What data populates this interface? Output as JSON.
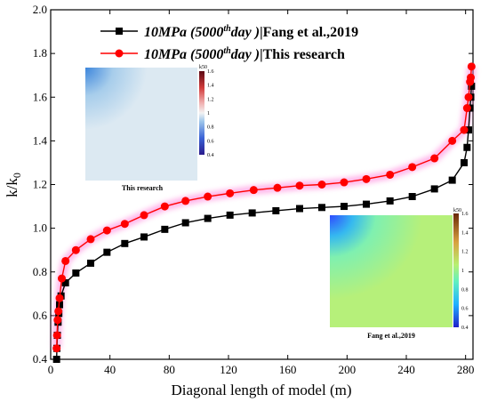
{
  "chart_data": {
    "type": "line",
    "xlabel": "Diagonal length of model (m)",
    "ylabel": "k/k0",
    "xlim": [
      0,
      285
    ],
    "ylim": [
      0.4,
      2.0
    ],
    "xticks": [
      "0",
      "40",
      "80",
      "120",
      "160",
      "200",
      "240",
      "280"
    ],
    "yticks": [
      "0.4",
      "0.6",
      "0.8",
      "1.0",
      "1.2",
      "1.4",
      "1.6",
      "1.8",
      "2.0"
    ],
    "legend_position": "top",
    "series": [
      {
        "name": "10MPa (5000thday)|Fang et al.,2019",
        "legend_main": "10MPa (5000",
        "legend_sup": "th",
        "legend_after": "day )",
        "legend_ref": "|Fang et al.,2019",
        "color": "#000000",
        "marker": "square",
        "x": [
          4,
          4.2,
          4.5,
          5,
          5.5,
          6,
          7,
          10,
          17,
          27,
          38,
          50,
          63,
          77,
          91,
          106,
          121,
          136,
          152,
          168,
          183,
          198,
          213,
          229,
          244,
          259,
          271,
          279,
          281,
          282,
          283,
          283.5,
          284
        ],
        "y": [
          0.4,
          0.45,
          0.51,
          0.57,
          0.61,
          0.65,
          0.69,
          0.75,
          0.795,
          0.84,
          0.89,
          0.93,
          0.96,
          0.995,
          1.025,
          1.045,
          1.06,
          1.07,
          1.08,
          1.09,
          1.095,
          1.1,
          1.11,
          1.125,
          1.145,
          1.18,
          1.22,
          1.3,
          1.37,
          1.45,
          1.55,
          1.6,
          1.65
        ]
      },
      {
        "name": "10MPa (5000thday)|This research",
        "legend_main": "10MPa (5000",
        "legend_sup": "th",
        "legend_after": "day )",
        "legend_ref": "|This research",
        "color": "#ff0000",
        "marker": "circle",
        "x": [
          4,
          4.3,
          4.7,
          5.2,
          6,
          7.5,
          10,
          17,
          27,
          38,
          50,
          63,
          77,
          91,
          106,
          121,
          137,
          153,
          168,
          183,
          198,
          213,
          229,
          244,
          259,
          271,
          279,
          281,
          282,
          283,
          283.5,
          284
        ],
        "y": [
          0.45,
          0.51,
          0.58,
          0.62,
          0.68,
          0.77,
          0.85,
          0.9,
          0.95,
          0.99,
          1.02,
          1.06,
          1.1,
          1.125,
          1.145,
          1.16,
          1.175,
          1.185,
          1.195,
          1.2,
          1.21,
          1.225,
          1.245,
          1.28,
          1.32,
          1.4,
          1.45,
          1.55,
          1.6,
          1.67,
          1.69,
          1.74
        ]
      }
    ],
    "insets": [
      {
        "caption": "This research",
        "colorbar_title": "k50",
        "colorbar_ticks": [
          "1.6",
          "1.4",
          "1.2",
          "1",
          "0.8",
          "0.6",
          "0.4"
        ],
        "colors": {
          "field": "#dce9f2",
          "corner": "#4a8fd6"
        }
      },
      {
        "caption": "Fang et al.,2019",
        "colorbar_title": "k50",
        "colorbar_ticks": [
          "1.6",
          "1.4",
          "1.2",
          "1",
          "0.8",
          "0.6",
          "0.4"
        ],
        "colors": {
          "field": "#aef080",
          "corner": "#3a55ff"
        }
      }
    ]
  }
}
